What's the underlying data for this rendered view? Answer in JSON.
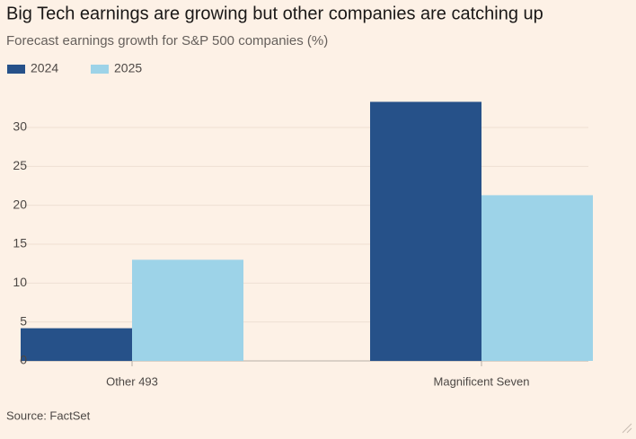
{
  "chart_data": {
    "type": "bar",
    "title": "Big Tech earnings are growing but other companies are catching up",
    "subtitle": "Forecast earnings growth for S&P 500 companies (%)",
    "source": "Source: FactSet",
    "categories": [
      "Other 493",
      "Magnificent Seven"
    ],
    "series": [
      {
        "name": "2024",
        "color": "#265189",
        "values": [
          4.2,
          33.3
        ]
      },
      {
        "name": "2025",
        "color": "#9dd3e8",
        "values": [
          13.0,
          21.3
        ]
      }
    ],
    "ylim": [
      0,
      35
    ],
    "yticks": [
      0,
      5,
      10,
      15,
      20,
      25,
      30
    ],
    "grid": true
  }
}
